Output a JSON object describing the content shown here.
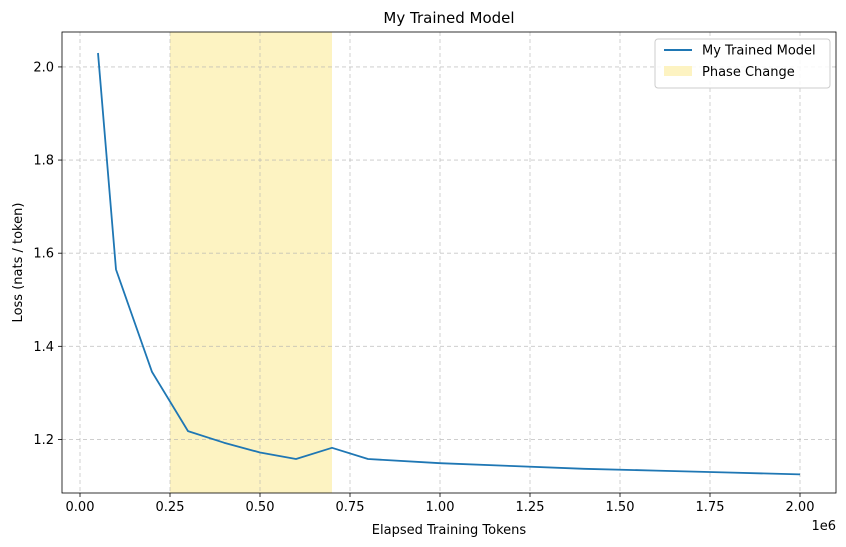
{
  "chart_data": {
    "type": "line",
    "title": "My Trained Model",
    "xlabel": "Elapsed Training Tokens",
    "ylabel": "Loss (nats / token)",
    "x_offset_label": "1e6",
    "xlim": [
      -50000,
      2100000
    ],
    "ylim": [
      1.085,
      2.075
    ],
    "x_ticks": [
      0,
      250000,
      500000,
      750000,
      1000000,
      1250000,
      1500000,
      1750000,
      2000000
    ],
    "x_tick_labels": [
      "0.00",
      "0.25",
      "0.50",
      "0.75",
      "1.00",
      "1.25",
      "1.50",
      "1.75",
      "2.00"
    ],
    "y_ticks": [
      1.2,
      1.4,
      1.6,
      1.8,
      2.0
    ],
    "y_tick_labels": [
      "1.2",
      "1.4",
      "1.6",
      "1.8",
      "2.0"
    ],
    "grid": true,
    "legend_position": "top-right",
    "series": [
      {
        "name": "My Trained Model",
        "color": "#1f77b4",
        "x": [
          50000,
          100000,
          200000,
          300000,
          400000,
          500000,
          600000,
          700000,
          800000,
          1000000,
          1200000,
          1400000,
          1600000,
          1800000,
          2000000
        ],
        "y": [
          2.03,
          1.565,
          1.345,
          1.218,
          1.193,
          1.172,
          1.158,
          1.182,
          1.158,
          1.149,
          1.143,
          1.137,
          1.133,
          1.129,
          1.125
        ]
      }
    ],
    "shaded_regions": [
      {
        "name": "Phase Change",
        "x_start": 250000,
        "x_end": 700000,
        "color": "#fdf3c2"
      }
    ]
  }
}
